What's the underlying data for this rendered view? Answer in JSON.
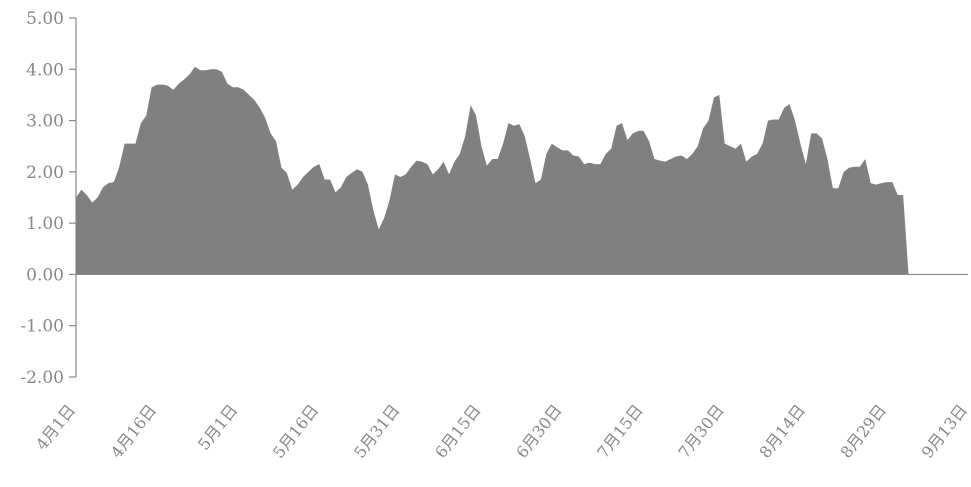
{
  "chart_data": {
    "type": "area",
    "title": "",
    "xlabel": "",
    "ylabel": "",
    "ylim": [
      -2,
      5
    ],
    "yticks": [
      "5.00",
      "4.00",
      "3.00",
      "2.00",
      "1.00",
      "0.00",
      "-1.00",
      "-2.00"
    ],
    "ytick_values": [
      5,
      4,
      3,
      2,
      1,
      0,
      -1,
      -2
    ],
    "xtick_labels": [
      "4月1日",
      "4月16日",
      "5月1日",
      "5月16日",
      "5月31日",
      "6月15日",
      "6月30日",
      "7月15日",
      "7月30日",
      "8月14日",
      "8月29日",
      "9月13日"
    ],
    "xtick_index": [
      0,
      15,
      30,
      45,
      60,
      75,
      90,
      105,
      120,
      135,
      150,
      165
    ],
    "grid": false,
    "legend": "none",
    "fill_color": "#808080",
    "axis_color": "#888888",
    "series": [
      {
        "values": [
          1.5,
          1.65,
          1.55,
          1.4,
          1.5,
          1.7,
          1.78,
          1.8,
          2.1,
          2.55,
          2.55,
          2.55,
          2.95,
          3.1,
          3.65,
          3.7,
          3.7,
          3.68,
          3.6,
          3.72,
          3.8,
          3.9,
          4.05,
          3.98,
          3.98,
          4.0,
          4.0,
          3.95,
          3.72,
          3.65,
          3.65,
          3.6,
          3.5,
          3.4,
          3.25,
          3.05,
          2.75,
          2.6,
          2.08,
          1.98,
          1.65,
          1.75,
          1.9,
          2.0,
          2.1,
          2.15,
          1.85,
          1.85,
          1.6,
          1.7,
          1.9,
          1.98,
          2.05,
          2.0,
          1.75,
          1.25,
          0.88,
          1.1,
          1.45,
          1.95,
          1.9,
          1.95,
          2.1,
          2.22,
          2.2,
          2.15,
          1.95,
          2.05,
          2.2,
          1.95,
          2.2,
          2.35,
          2.7,
          3.3,
          3.1,
          2.5,
          2.12,
          2.25,
          2.25,
          2.55,
          2.95,
          2.9,
          2.93,
          2.7,
          2.25,
          1.78,
          1.85,
          2.35,
          2.55,
          2.48,
          2.42,
          2.42,
          2.32,
          2.3,
          2.15,
          2.18,
          2.15,
          2.15,
          2.35,
          2.45,
          2.9,
          2.95,
          2.62,
          2.75,
          2.8,
          2.8,
          2.6,
          2.25,
          2.22,
          2.2,
          2.25,
          2.3,
          2.32,
          2.25,
          2.35,
          2.5,
          2.85,
          3.0,
          3.45,
          3.5,
          2.55,
          2.5,
          2.45,
          2.55,
          2.2,
          2.3,
          2.35,
          2.55,
          3.0,
          3.02,
          3.02,
          3.25,
          3.32,
          3.0,
          2.55,
          2.15,
          2.75,
          2.75,
          2.65,
          2.25,
          1.68,
          1.68,
          2.0,
          2.08,
          2.1,
          2.1,
          2.25,
          1.78,
          1.75,
          1.78,
          1.8,
          1.8,
          1.55,
          1.55,
          0.0,
          0.0,
          0.0,
          0.0,
          0.0,
          0.0,
          0.0,
          0.0,
          0.0,
          0.0,
          0.0,
          0.0,
          0.0,
          0.0
        ]
      }
    ]
  }
}
